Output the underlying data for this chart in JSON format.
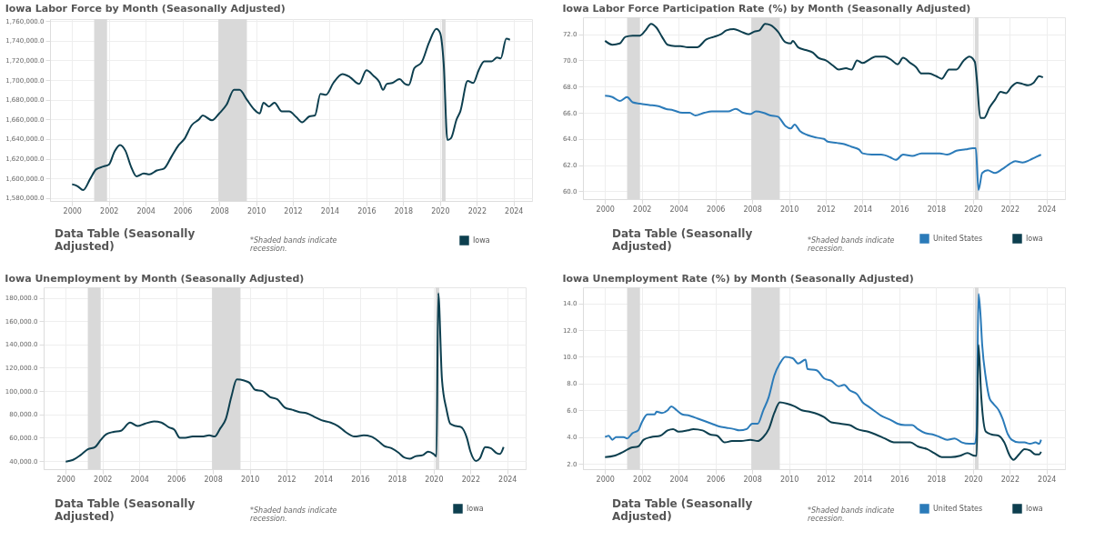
{
  "chart_data": [
    {
      "type": "line",
      "title": "Iowa Labor Force by Month (Seasonally Adjusted)",
      "xlim": [
        1998.8,
        2025
      ],
      "xticks": [
        2000,
        2002,
        2004,
        2006,
        2008,
        2010,
        2012,
        2014,
        2016,
        2018,
        2020,
        2022,
        2024
      ],
      "ylim": [
        1577000,
        1762000
      ],
      "yticks": [
        {
          "value": 1580000,
          "label": "1,580,000.0"
        },
        {
          "value": 1600000,
          "label": "1,600,000.0"
        },
        {
          "value": 1620000,
          "label": "1,620,000.0"
        },
        {
          "value": 1640000,
          "label": "1,640,000.0"
        },
        {
          "value": 1660000,
          "label": "1,660,000.0"
        },
        {
          "value": 1680000,
          "label": "1,680,000.0"
        },
        {
          "value": 1700000,
          "label": "1,700,000.0"
        },
        {
          "value": 1720000,
          "label": "1,720,000.0"
        },
        {
          "value": 1740000,
          "label": "1,740,000.0"
        },
        {
          "value": 1760000,
          "label": "1,760,000.0"
        }
      ],
      "grid": true,
      "legend": "bottom right",
      "bands": [
        {
          "axis": "x",
          "from": 2001.2,
          "to": 2001.9,
          "color": "#d9d9d9"
        },
        {
          "axis": "x",
          "from": 2007.95,
          "to": 2009.5,
          "color": "#d9d9d9"
        },
        {
          "axis": "x",
          "from": 2020.1,
          "to": 2020.3,
          "color": "#d9d9d9"
        }
      ],
      "annotations": [
        "Data Table (Seasonally Adjusted)",
        "*Shaded bands indicate recession."
      ],
      "series": [
        {
          "name": "Iowa",
          "color": "#0d3f4f",
          "x": [
            2000.0,
            2000.3,
            2000.6,
            2001.0,
            2001.3,
            2001.7,
            2002.0,
            2002.3,
            2002.6,
            2002.9,
            2003.2,
            2003.5,
            2003.9,
            2004.2,
            2004.6,
            2005.0,
            2005.4,
            2005.8,
            2006.1,
            2006.5,
            2006.9,
            2007.1,
            2007.6,
            2008.0,
            2008.4,
            2008.8,
            2009.1,
            2009.5,
            2009.9,
            2010.2,
            2010.4,
            2010.7,
            2011.0,
            2011.4,
            2011.8,
            2012.2,
            2012.5,
            2012.9,
            2013.2,
            2013.5,
            2013.8,
            2014.2,
            2014.7,
            2015.1,
            2015.6,
            2016.0,
            2016.4,
            2016.7,
            2016.9,
            2017.1,
            2017.4,
            2017.8,
            2018.1,
            2018.3,
            2018.6,
            2019.0,
            2019.4,
            2019.8,
            2020.0,
            2020.2,
            2020.4,
            2020.6,
            2020.9,
            2021.1,
            2021.5,
            2021.8,
            2022.1,
            2022.4,
            2022.8,
            2023.1,
            2023.3,
            2023.6,
            2023.8
          ],
          "values": [
            1594000,
            1592000,
            1588000,
            1600000,
            1609000,
            1612000,
            1614000,
            1627000,
            1634000,
            1628000,
            1612000,
            1602000,
            1605000,
            1604000,
            1608000,
            1610000,
            1622000,
            1634000,
            1640000,
            1654000,
            1660000,
            1664000,
            1659000,
            1666000,
            1675000,
            1690000,
            1690000,
            1680000,
            1670000,
            1666000,
            1677000,
            1673000,
            1677000,
            1668000,
            1668000,
            1662000,
            1657000,
            1663000,
            1664000,
            1686000,
            1685000,
            1697000,
            1706000,
            1703000,
            1696000,
            1710000,
            1704000,
            1698000,
            1690000,
            1696000,
            1697000,
            1701000,
            1696000,
            1695000,
            1712000,
            1718000,
            1738000,
            1752000,
            1748000,
            1716000,
            1639000,
            1641000,
            1660000,
            1668000,
            1699000,
            1697000,
            1710000,
            1719000,
            1719000,
            1723000,
            1722000,
            1742000,
            1741000
          ]
        }
      ]
    },
    {
      "type": "line",
      "title": "Iowa Labor Force Participation Rate (%) by Month (Seasonally Adjusted)",
      "xlim": [
        1998.8,
        2025
      ],
      "xticks": [
        2000,
        2002,
        2004,
        2006,
        2008,
        2010,
        2012,
        2014,
        2016,
        2018,
        2020,
        2022,
        2024
      ],
      "ylim": [
        59.4,
        73.3
      ],
      "yticks": [
        {
          "value": 60,
          "label": "60.0"
        },
        {
          "value": 62,
          "label": "62.0"
        },
        {
          "value": 64,
          "label": "64.0"
        },
        {
          "value": 66,
          "label": "66.0"
        },
        {
          "value": 68,
          "label": "68.0"
        },
        {
          "value": 70,
          "label": "70.0"
        },
        {
          "value": 72,
          "label": "72.0"
        }
      ],
      "grid": true,
      "legend": "bottom right",
      "bands": [
        {
          "axis": "x",
          "from": 2001.2,
          "to": 2001.9,
          "color": "#d9d9d9"
        },
        {
          "axis": "x",
          "from": 2007.95,
          "to": 2009.5,
          "color": "#d9d9d9"
        },
        {
          "axis": "x",
          "from": 2020.1,
          "to": 2020.3,
          "color": "#d9d9d9"
        }
      ],
      "annotations": [
        "Data Table (Seasonally Adjusted)",
        "*Shaded bands indicate recession."
      ],
      "series": [
        {
          "name": "United States",
          "color": "#2b7bb9",
          "x": [
            2000.0,
            2000.4,
            2000.8,
            2001.2,
            2001.5,
            2001.9,
            2002.4,
            2002.9,
            2003.3,
            2003.7,
            2004.2,
            2004.6,
            2004.9,
            2005.4,
            2005.8,
            2006.3,
            2006.7,
            2007.1,
            2007.5,
            2007.9,
            2008.2,
            2008.6,
            2009.0,
            2009.4,
            2009.8,
            2010.1,
            2010.3,
            2010.6,
            2011.0,
            2011.5,
            2011.9,
            2012.1,
            2012.6,
            2013.0,
            2013.4,
            2013.8,
            2014.0,
            2014.5,
            2015.0,
            2015.5,
            2015.8,
            2016.2,
            2016.7,
            2017.2,
            2017.7,
            2018.2,
            2018.6,
            2019.1,
            2019.6,
            2020.0,
            2020.15,
            2020.3,
            2020.5,
            2020.8,
            2021.2,
            2021.6,
            2022.0,
            2022.3,
            2022.7,
            2023.1,
            2023.4,
            2023.7
          ],
          "values": [
            67.3,
            67.2,
            66.9,
            67.2,
            66.8,
            66.7,
            66.6,
            66.5,
            66.3,
            66.2,
            66.0,
            66.0,
            65.8,
            66.0,
            66.1,
            66.1,
            66.1,
            66.3,
            66.0,
            65.9,
            66.1,
            66.0,
            65.8,
            65.7,
            65.0,
            64.8,
            65.1,
            64.6,
            64.3,
            64.1,
            64.0,
            63.8,
            63.7,
            63.6,
            63.4,
            63.2,
            62.9,
            62.8,
            62.8,
            62.6,
            62.4,
            62.8,
            62.7,
            62.9,
            62.9,
            62.9,
            62.8,
            63.1,
            63.2,
            63.3,
            63.3,
            60.1,
            61.4,
            61.6,
            61.4,
            61.7,
            62.1,
            62.3,
            62.2,
            62.4,
            62.6,
            62.8
          ]
        },
        {
          "name": "Iowa",
          "color": "#0d3f4f",
          "x": [
            2000.0,
            2000.4,
            2000.8,
            2001.1,
            2001.5,
            2001.9,
            2002.2,
            2002.5,
            2002.8,
            2003.1,
            2003.4,
            2003.8,
            2004.1,
            2004.5,
            2005.0,
            2005.5,
            2005.9,
            2006.3,
            2006.6,
            2007.0,
            2007.4,
            2007.8,
            2008.1,
            2008.4,
            2008.7,
            2009.0,
            2009.4,
            2009.8,
            2010.1,
            2010.2,
            2010.5,
            2010.9,
            2011.3,
            2011.6,
            2012.0,
            2012.4,
            2012.7,
            2013.1,
            2013.4,
            2013.7,
            2014.0,
            2014.4,
            2014.7,
            2015.2,
            2015.6,
            2015.9,
            2016.2,
            2016.6,
            2016.9,
            2017.2,
            2017.6,
            2018.0,
            2018.3,
            2018.7,
            2019.1,
            2019.5,
            2019.8,
            2020.1,
            2020.2,
            2020.4,
            2020.6,
            2020.9,
            2021.2,
            2021.5,
            2021.8,
            2022.1,
            2022.4,
            2022.7,
            2023.0,
            2023.3,
            2023.6,
            2023.8
          ],
          "values": [
            71.5,
            71.2,
            71.3,
            71.8,
            71.9,
            71.9,
            72.3,
            72.8,
            72.5,
            71.8,
            71.2,
            71.1,
            71.1,
            71.0,
            71.0,
            71.6,
            71.8,
            72.0,
            72.3,
            72.4,
            72.2,
            72.0,
            72.2,
            72.3,
            72.8,
            72.7,
            72.2,
            71.4,
            71.3,
            71.5,
            71.0,
            70.8,
            70.6,
            70.2,
            70.0,
            69.6,
            69.3,
            69.4,
            69.3,
            70.0,
            69.8,
            70.1,
            70.3,
            70.3,
            70.0,
            69.7,
            70.2,
            69.8,
            69.5,
            69.0,
            69.0,
            68.8,
            68.6,
            69.3,
            69.3,
            70.0,
            70.3,
            69.9,
            68.7,
            65.6,
            65.6,
            66.4,
            67.0,
            67.6,
            67.5,
            68.0,
            68.3,
            68.2,
            68.1,
            68.3,
            68.8,
            68.7
          ]
        }
      ]
    },
    {
      "type": "line",
      "title": "Iowa Unemployment by Month (Seasonally Adjusted)",
      "xlim": [
        1998.8,
        2025
      ],
      "xticks": [
        2000,
        2002,
        2004,
        2006,
        2008,
        2010,
        2012,
        2014,
        2016,
        2018,
        2020,
        2022,
        2024
      ],
      "ylim": [
        33000,
        189000
      ],
      "yticks": [
        {
          "value": 40000,
          "label": "40,000.0"
        },
        {
          "value": 60000,
          "label": "60,000.0"
        },
        {
          "value": 80000,
          "label": "80,000.0"
        },
        {
          "value": 100000,
          "label": "100,000.0"
        },
        {
          "value": 120000,
          "label": "120,000.0"
        },
        {
          "value": 140000,
          "label": "140,000.0"
        },
        {
          "value": 160000,
          "label": "160,000.0"
        },
        {
          "value": 180000,
          "label": "180,000.0"
        }
      ],
      "grid": true,
      "legend": "bottom right",
      "bands": [
        {
          "axis": "x",
          "from": 2001.2,
          "to": 2001.9,
          "color": "#d9d9d9"
        },
        {
          "axis": "x",
          "from": 2007.95,
          "to": 2009.5,
          "color": "#d9d9d9"
        },
        {
          "axis": "x",
          "from": 2020.1,
          "to": 2020.3,
          "color": "#d9d9d9"
        }
      ],
      "annotations": [
        "Data Table (Seasonally Adjusted)",
        "*Shaded bands indicate recession."
      ],
      "series": [
        {
          "name": "Iowa",
          "color": "#0d3f4f",
          "x": [
            2000.0,
            2000.4,
            2000.8,
            2001.2,
            2001.6,
            2001.9,
            2002.2,
            2002.6,
            2003.0,
            2003.5,
            2003.9,
            2004.3,
            2004.8,
            2005.2,
            2005.6,
            2005.9,
            2006.2,
            2006.5,
            2006.9,
            2007.4,
            2007.8,
            2008.1,
            2008.4,
            2008.7,
            2009.0,
            2009.3,
            2009.7,
            2010.0,
            2010.3,
            2010.7,
            2011.1,
            2011.5,
            2011.9,
            2012.3,
            2012.7,
            2013.1,
            2013.5,
            2013.9,
            2014.4,
            2014.8,
            2015.2,
            2015.7,
            2016.2,
            2016.6,
            2017.0,
            2017.3,
            2017.7,
            2018.1,
            2018.4,
            2018.7,
            2019.0,
            2019.4,
            2019.7,
            2020.0,
            2020.15,
            2020.25,
            2020.45,
            2020.7,
            2020.9,
            2021.2,
            2021.5,
            2021.8,
            2022.0,
            2022.3,
            2022.5,
            2022.8,
            2023.1,
            2023.4,
            2023.6,
            2023.8
          ],
          "values": [
            39500,
            41000,
            45000,
            50000,
            52000,
            58000,
            63000,
            65000,
            66000,
            73000,
            70000,
            72000,
            74000,
            73000,
            69000,
            67000,
            60000,
            60000,
            61000,
            61000,
            62000,
            61000,
            68000,
            76000,
            95000,
            110000,
            109000,
            107000,
            101000,
            100000,
            95000,
            93000,
            86000,
            84000,
            82000,
            81000,
            78000,
            75000,
            73000,
            70000,
            65000,
            61000,
            62000,
            61000,
            57000,
            53000,
            51000,
            47000,
            43000,
            42000,
            44000,
            45000,
            48000,
            46000,
            44000,
            184000,
            110000,
            84000,
            72000,
            70000,
            69000,
            60000,
            48000,
            40000,
            42000,
            52000,
            51000,
            47000,
            46000,
            52000
          ]
        }
      ]
    },
    {
      "type": "line",
      "title": "Iowa Unemployment Rate (%) by Month (Seasonally Adjusted)",
      "xlim": [
        1998.8,
        2025
      ],
      "xticks": [
        2000,
        2002,
        2004,
        2006,
        2008,
        2010,
        2012,
        2014,
        2016,
        2018,
        2020,
        2022,
        2024
      ],
      "ylim": [
        1.6,
        15.2
      ],
      "yticks": [
        {
          "value": 2,
          "label": "2.0"
        },
        {
          "value": 4,
          "label": "4.0"
        },
        {
          "value": 6,
          "label": "6.0"
        },
        {
          "value": 8,
          "label": "8.0"
        },
        {
          "value": 10,
          "label": "10.0"
        },
        {
          "value": 12,
          "label": "12.0"
        },
        {
          "value": 14,
          "label": "14.0"
        }
      ],
      "grid": true,
      "legend": "bottom right",
      "bands": [
        {
          "axis": "x",
          "from": 2001.2,
          "to": 2001.9,
          "color": "#d9d9d9"
        },
        {
          "axis": "x",
          "from": 2007.95,
          "to": 2009.5,
          "color": "#d9d9d9"
        },
        {
          "axis": "x",
          "from": 2020.1,
          "to": 2020.3,
          "color": "#d9d9d9"
        }
      ],
      "annotations": [
        "Data Table (Seasonally Adjusted)",
        "*Shaded bands indicate recession."
      ],
      "series": [
        {
          "name": "United States",
          "color": "#2b7bb9",
          "x": [
            2000.0,
            2000.2,
            2000.4,
            2000.6,
            2001.0,
            2001.2,
            2001.5,
            2001.8,
            2002.0,
            2002.3,
            2002.7,
            2002.8,
            2003.1,
            2003.4,
            2003.6,
            2003.9,
            2004.2,
            2004.6,
            2005.0,
            2005.4,
            2005.8,
            2006.2,
            2006.6,
            2007.0,
            2007.3,
            2007.7,
            2008.0,
            2008.3,
            2008.6,
            2008.9,
            2009.2,
            2009.5,
            2009.8,
            2010.2,
            2010.5,
            2010.9,
            2011.0,
            2011.5,
            2011.9,
            2012.3,
            2012.7,
            2013.0,
            2013.3,
            2013.7,
            2014.0,
            2014.3,
            2014.7,
            2015.0,
            2015.5,
            2015.9,
            2016.3,
            2016.7,
            2017.0,
            2017.4,
            2017.8,
            2018.2,
            2018.6,
            2019.0,
            2019.4,
            2019.8,
            2020.1,
            2020.2,
            2020.3,
            2020.4,
            2020.5,
            2020.7,
            2020.9,
            2021.1,
            2021.4,
            2021.6,
            2021.9,
            2022.1,
            2022.5,
            2022.8,
            2023.1,
            2023.4,
            2023.6,
            2023.7
          ],
          "values": [
            4.0,
            4.1,
            3.8,
            4.0,
            4.0,
            3.9,
            4.3,
            4.5,
            5.1,
            5.7,
            5.7,
            5.9,
            5.8,
            6.0,
            6.3,
            6.0,
            5.7,
            5.6,
            5.4,
            5.2,
            5.0,
            4.8,
            4.7,
            4.6,
            4.5,
            4.6,
            5.0,
            5.0,
            6.0,
            7.0,
            8.6,
            9.5,
            10.0,
            9.9,
            9.5,
            9.8,
            9.1,
            9.0,
            8.4,
            8.2,
            7.8,
            7.9,
            7.5,
            7.2,
            6.6,
            6.3,
            5.9,
            5.6,
            5.3,
            5.0,
            4.9,
            4.9,
            4.6,
            4.3,
            4.2,
            4.0,
            3.8,
            3.9,
            3.6,
            3.5,
            3.5,
            4.4,
            14.7,
            13.3,
            10.9,
            8.4,
            6.9,
            6.5,
            6.0,
            5.4,
            4.2,
            3.8,
            3.6,
            3.6,
            3.5,
            3.6,
            3.5,
            3.8
          ]
        },
        {
          "name": "Iowa",
          "color": "#0d3f4f",
          "x": [
            2000.0,
            2000.5,
            2001.0,
            2001.4,
            2001.8,
            2002.1,
            2002.5,
            2003.0,
            2003.4,
            2003.7,
            2004.0,
            2004.5,
            2004.8,
            2005.3,
            2005.7,
            2006.1,
            2006.5,
            2006.9,
            2007.4,
            2007.9,
            2008.3,
            2008.6,
            2008.9,
            2009.2,
            2009.5,
            2009.9,
            2010.3,
            2010.7,
            2011.1,
            2011.6,
            2011.9,
            2012.3,
            2012.8,
            2013.3,
            2013.7,
            2014.3,
            2014.7,
            2015.2,
            2015.7,
            2016.3,
            2016.6,
            2017.0,
            2017.5,
            2017.9,
            2018.3,
            2018.8,
            2019.3,
            2019.7,
            2020.1,
            2020.2,
            2020.3,
            2020.45,
            2020.7,
            2021.0,
            2021.4,
            2021.7,
            2022.0,
            2022.2,
            2022.5,
            2022.8,
            2023.1,
            2023.4,
            2023.6,
            2023.7
          ],
          "values": [
            2.5,
            2.6,
            2.9,
            3.2,
            3.3,
            3.8,
            4.0,
            4.1,
            4.5,
            4.6,
            4.4,
            4.5,
            4.6,
            4.5,
            4.2,
            4.1,
            3.6,
            3.7,
            3.7,
            3.8,
            3.7,
            4.0,
            4.6,
            5.8,
            6.6,
            6.5,
            6.3,
            6.0,
            5.9,
            5.7,
            5.5,
            5.1,
            5.0,
            4.9,
            4.6,
            4.4,
            4.2,
            3.9,
            3.6,
            3.6,
            3.6,
            3.3,
            3.1,
            2.8,
            2.5,
            2.5,
            2.6,
            2.8,
            2.6,
            2.6,
            10.9,
            7.0,
            4.4,
            4.2,
            4.1,
            3.6,
            2.6,
            2.3,
            2.7,
            3.1,
            3.0,
            2.7,
            2.7,
            2.9
          ]
        }
      ]
    }
  ]
}
